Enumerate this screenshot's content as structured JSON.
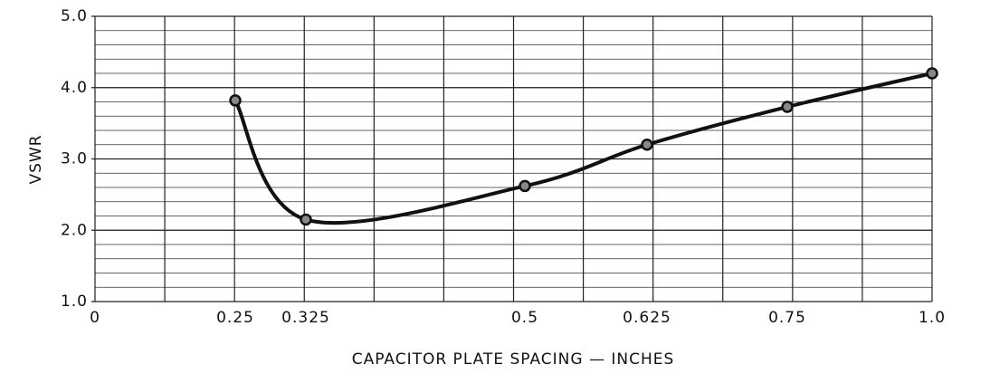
{
  "chart_data": {
    "type": "line",
    "x_label": "CAPACITOR PLATE SPACING — INCHES",
    "y_label": "VSWR",
    "categories": [
      "0",
      "0.25",
      "0.325",
      "0.5",
      "0.625",
      "0.75",
      "1.0"
    ],
    "series": [
      {
        "name": "VSWR",
        "color": "#111111",
        "values": [
          null,
          3.82,
          2.15,
          2.62,
          3.2,
          3.73,
          4.2
        ]
      }
    ],
    "ylim": [
      1,
      5
    ],
    "yticks": [
      {
        "value": 1,
        "label": "1.0"
      },
      {
        "value": 2,
        "label": "2.0"
      },
      {
        "value": 3,
        "label": "3.0"
      },
      {
        "value": 4,
        "label": "4.0"
      },
      {
        "value": 5,
        "label": "5.0"
      }
    ],
    "grid": true
  }
}
